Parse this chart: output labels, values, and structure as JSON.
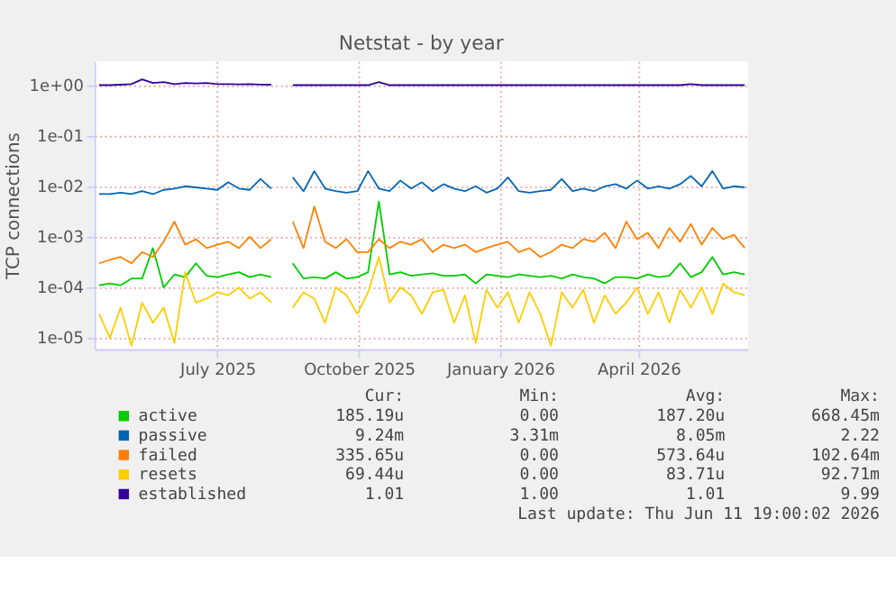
{
  "chart_data": {
    "type": "line",
    "title": "Netstat - by year",
    "ylabel": "TCP connections",
    "log": "y",
    "grid": true,
    "marker": "none",
    "line_style": "solid",
    "legend": "bottom",
    "x": [
      "2025-04-15",
      "2025-04-22",
      "2025-04-29",
      "2025-05-06",
      "2025-05-13",
      "2025-05-20",
      "2025-05-27",
      "2025-06-03",
      "2025-06-10",
      "2025-06-17",
      "2025-06-24",
      "2025-07-01",
      "2025-07-08",
      "2025-07-15",
      "2025-07-22",
      "2025-07-29",
      "2025-08-05",
      "2025-08-12",
      "2025-08-19",
      "2025-08-26",
      "2025-09-02",
      "2025-09-09",
      "2025-09-16",
      "2025-09-23",
      "2025-09-30",
      "2025-10-07",
      "2025-10-14",
      "2025-10-21",
      "2025-10-28",
      "2025-11-04",
      "2025-11-11",
      "2025-11-18",
      "2025-11-25",
      "2025-12-02",
      "2025-12-09",
      "2025-12-16",
      "2025-12-23",
      "2025-12-30",
      "2026-01-06",
      "2026-01-13",
      "2026-01-20",
      "2026-01-27",
      "2026-02-03",
      "2026-02-10",
      "2026-02-17",
      "2026-02-24",
      "2026-03-03",
      "2026-03-10",
      "2026-03-17",
      "2026-03-24",
      "2026-03-31",
      "2026-04-07",
      "2026-04-14",
      "2026-04-21",
      "2026-04-28",
      "2026-05-05",
      "2026-05-12",
      "2026-05-19",
      "2026-05-26",
      "2026-06-02",
      "2026-06-09"
    ],
    "xlim": [
      "2025-04-12",
      "2026-06-11"
    ],
    "xticks": [
      {
        "value": "2025-07-01",
        "label": "July 2025"
      },
      {
        "value": "2025-10-01",
        "label": "October 2025"
      },
      {
        "value": "2026-01-01",
        "label": "January 2026"
      },
      {
        "value": "2026-04-01",
        "label": "April 2026"
      }
    ],
    "ylim": [
      6e-06,
      3
    ],
    "yticks": [
      {
        "value": 1,
        "label": "1e+00"
      },
      {
        "value": 0.1,
        "label": "1e-01"
      },
      {
        "value": 0.01,
        "label": "1e-02"
      },
      {
        "value": 0.001,
        "label": "1e-03"
      },
      {
        "value": 0.0001,
        "label": "1e-04"
      },
      {
        "value": 1e-05,
        "label": "1e-05"
      }
    ],
    "series": [
      {
        "name": "active",
        "color": "#00cc00",
        "values": [
          0.00011,
          0.00012,
          0.00011,
          0.00015,
          0.00015,
          0.0006,
          0.0001,
          0.00018,
          0.00016,
          0.0003,
          0.00017,
          0.00016,
          0.00018,
          0.0002,
          0.00016,
          0.00018,
          0.00016,
          null,
          0.0003,
          0.00015,
          0.00016,
          0.00015,
          0.0002,
          0.00015,
          0.00016,
          0.0002,
          0.005,
          0.00018,
          0.0002,
          0.00017,
          0.00018,
          0.00019,
          0.00017,
          0.00017,
          0.00018,
          0.00012,
          0.00018,
          0.00017,
          0.00016,
          0.00018,
          0.00017,
          0.00016,
          0.00017,
          0.00015,
          0.00018,
          0.00016,
          0.00015,
          0.00012,
          0.00016,
          0.00016,
          0.00015,
          0.00018,
          0.00016,
          0.00017,
          0.0003,
          0.00016,
          0.0002,
          0.0004,
          0.00018,
          0.0002,
          0.00018
        ]
      },
      {
        "name": "passive",
        "color": "#0066b3",
        "values": [
          0.007,
          0.007,
          0.0075,
          0.007,
          0.008,
          0.007,
          0.0085,
          0.009,
          0.01,
          0.0095,
          0.009,
          0.0085,
          0.012,
          0.009,
          0.0085,
          0.014,
          0.009,
          null,
          0.015,
          0.008,
          0.02,
          0.009,
          0.008,
          0.0075,
          0.008,
          0.02,
          0.009,
          0.008,
          0.013,
          0.009,
          0.012,
          0.008,
          0.011,
          0.009,
          0.008,
          0.01,
          0.0075,
          0.009,
          0.015,
          0.008,
          0.0075,
          0.008,
          0.0085,
          0.014,
          0.008,
          0.009,
          0.008,
          0.01,
          0.011,
          0.009,
          0.013,
          0.009,
          0.01,
          0.009,
          0.011,
          0.016,
          0.01,
          0.02,
          0.009,
          0.01,
          0.0095
        ]
      },
      {
        "name": "failed",
        "color": "#ff8000",
        "values": [
          0.0003,
          0.00035,
          0.0004,
          0.0003,
          0.0005,
          0.0004,
          0.0008,
          0.002,
          0.0007,
          0.0009,
          0.0006,
          0.0007,
          0.0008,
          0.0006,
          0.001,
          0.0006,
          0.0009,
          null,
          0.002,
          0.0006,
          0.004,
          0.0008,
          0.0006,
          0.0009,
          0.0005,
          0.0005,
          0.0009,
          0.0006,
          0.0008,
          0.0007,
          0.0009,
          0.0005,
          0.0007,
          0.0006,
          0.0007,
          0.0005,
          0.0006,
          0.0007,
          0.0008,
          0.0005,
          0.0006,
          0.0004,
          0.0005,
          0.0007,
          0.0006,
          0.0009,
          0.0008,
          0.0012,
          0.0006,
          0.002,
          0.0009,
          0.0012,
          0.0006,
          0.0015,
          0.0008,
          0.0018,
          0.0007,
          0.0015,
          0.0009,
          0.0011,
          0.0006
        ]
      },
      {
        "name": "resets",
        "color": "#ffcc00",
        "values": [
          3e-05,
          1e-05,
          4e-05,
          7e-06,
          5e-05,
          2e-05,
          4e-05,
          8e-06,
          0.0002,
          5e-05,
          6e-05,
          8e-05,
          7e-05,
          0.0001,
          6e-05,
          8e-05,
          5e-05,
          null,
          4e-05,
          8e-05,
          6e-05,
          2e-05,
          0.0001,
          7e-05,
          3e-05,
          8e-05,
          0.0004,
          5e-05,
          0.0001,
          7e-05,
          3e-05,
          8e-05,
          9e-05,
          2e-05,
          7e-05,
          8e-06,
          9e-05,
          4e-05,
          8e-05,
          2e-05,
          8e-05,
          3e-05,
          7e-06,
          8e-05,
          4e-05,
          9e-05,
          2e-05,
          7e-05,
          3e-05,
          5e-05,
          0.0001,
          3e-05,
          8e-05,
          2e-05,
          9e-05,
          4e-05,
          0.0001,
          3e-05,
          0.00012,
          8e-05,
          7e-05
        ]
      },
      {
        "name": "established",
        "color": "#330099",
        "values": [
          1.0,
          1.0,
          1.02,
          1.05,
          1.3,
          1.1,
          1.15,
          1.05,
          1.1,
          1.08,
          1.1,
          1.05,
          1.05,
          1.04,
          1.05,
          1.03,
          1.02,
          null,
          1.0,
          1.0,
          1.0,
          1.0,
          1.0,
          1.0,
          1.0,
          1.0,
          1.15,
          1.0,
          1.0,
          1.0,
          1.0,
          1.0,
          1.0,
          1.0,
          1.0,
          1.0,
          1.0,
          1.0,
          1.0,
          1.0,
          1.0,
          1.0,
          1.0,
          1.0,
          1.0,
          1.0,
          1.0,
          1.0,
          1.0,
          1.0,
          1.0,
          1.0,
          1.0,
          1.0,
          1.0,
          1.05,
          1.0,
          1.0,
          1.0,
          1.0,
          1.0
        ]
      }
    ],
    "annotations": [
      "Cur:",
      "Min:",
      "Avg:",
      "Max:",
      "185.19u",
      "0.00",
      "187.20u",
      "668.45m",
      "9.24m",
      "3.31m",
      "8.05m",
      "2.22",
      "335.65u",
      "0.00",
      "573.64u",
      "102.64m",
      "69.44u",
      "0.00",
      "83.71u",
      "92.71m",
      "1.01",
      "1.00",
      "1.01",
      "9.99",
      "Last update: Thu Jun 11 19:00:02 2026"
    ]
  }
}
